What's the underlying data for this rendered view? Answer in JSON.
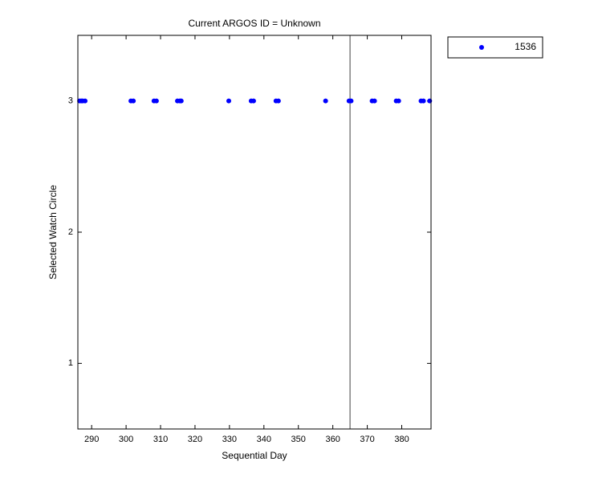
{
  "chart_data": {
    "type": "scatter",
    "title": "Current ARGOS ID = Unknown",
    "x_label": "Sequential Day",
    "y_label": "Selected Watch Circle",
    "x": [
      286.5,
      287,
      287.4,
      288.1,
      301.4,
      302.1,
      308.1,
      308.8,
      314.9,
      315.6,
      316,
      329.8,
      336.3,
      337,
      343.5,
      344.2,
      357.9,
      364.7,
      365.3,
      371.4,
      372.1,
      378.4,
      379.1,
      385.6,
      386.3,
      388.1
    ],
    "series": [
      {
        "name": "1536",
        "color": "#0000ff",
        "values": [
          3,
          3,
          3,
          3,
          3,
          3,
          3,
          3,
          3,
          3,
          3,
          3,
          3,
          3,
          3,
          3,
          3,
          3,
          3,
          3,
          3,
          3,
          3,
          3,
          3,
          3
        ]
      }
    ],
    "xlim": [
      286,
      388.5
    ],
    "xticks": [
      290,
      300,
      310,
      320,
      330,
      340,
      350,
      360,
      370,
      380
    ],
    "ylim": [
      0.5,
      3.5
    ],
    "yticks": [
      1,
      2,
      3
    ],
    "vline": 365,
    "vline_color": "#808080",
    "legend": "outside-top-right",
    "grid": false
  }
}
